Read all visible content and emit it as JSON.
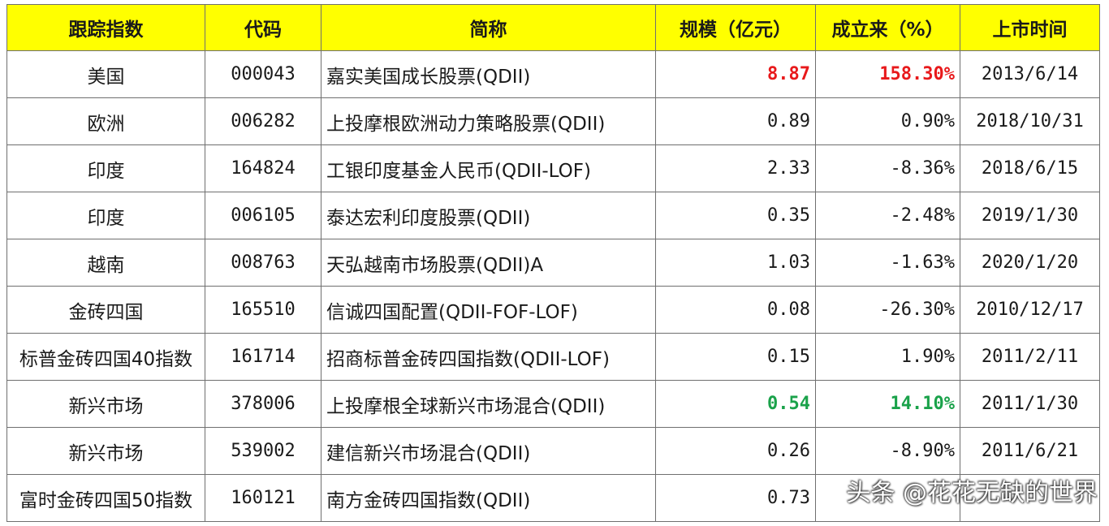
{
  "table": {
    "headers": [
      "跟踪指数",
      "代码",
      "简称",
      "规模（亿元）",
      "成立来（%）",
      "上市时间"
    ],
    "rows": [
      {
        "index": "美国",
        "code": "000043",
        "name": "嘉实美国成长股票(QDII)",
        "scale": "8.87",
        "return": "158.30%",
        "date": "2013/6/14"
      },
      {
        "index": "欧洲",
        "code": "006282",
        "name": "上投摩根欧洲动力策略股票(QDII)",
        "scale": "0.89",
        "return": "0.90%",
        "date": "2018/10/31"
      },
      {
        "index": "印度",
        "code": "164824",
        "name": "工银印度基金人民币(QDII-LOF)",
        "scale": "2.33",
        "return": "-8.36%",
        "date": "2018/6/15"
      },
      {
        "index": "印度",
        "code": "006105",
        "name": "泰达宏利印度股票(QDII)",
        "scale": "0.35",
        "return": "-2.48%",
        "date": "2019/1/30"
      },
      {
        "index": "越南",
        "code": "008763",
        "name": "天弘越南市场股票(QDII)A",
        "scale": "1.03",
        "return": "-1.63%",
        "date": "2020/1/20"
      },
      {
        "index": "金砖四国",
        "code": "165510",
        "name": "信诚四国配置(QDII-FOF-LOF)",
        "scale": "0.08",
        "return": "-26.30%",
        "date": "2010/12/17"
      },
      {
        "index": "标普金砖四国40指数",
        "code": "161714",
        "name": "招商标普金砖四国指数(QDII-LOF)",
        "scale": "0.15",
        "return": "1.90%",
        "date": "2011/2/11"
      },
      {
        "index": "新兴市场",
        "code": "378006",
        "name": "上投摩根全球新兴市场混合(QDII)",
        "scale": "0.54",
        "return": "14.10%",
        "date": "2011/1/30"
      },
      {
        "index": "新兴市场",
        "code": "539002",
        "name": "建信新兴市场混合(QDII)",
        "scale": "0.26",
        "return": "-8.90%",
        "date": "2011/6/21"
      },
      {
        "index": "富时金砖四国50指数",
        "code": "160121",
        "name": "南方金砖四国指数(QDII)",
        "scale": "0.73",
        "return": "",
        "date": ""
      }
    ]
  },
  "highlight_colors": {
    "best": "#e8191b",
    "second": "#1aa24a",
    "header_bg": "#ffff00"
  },
  "watermark": "头条 @花花无缺的世界"
}
